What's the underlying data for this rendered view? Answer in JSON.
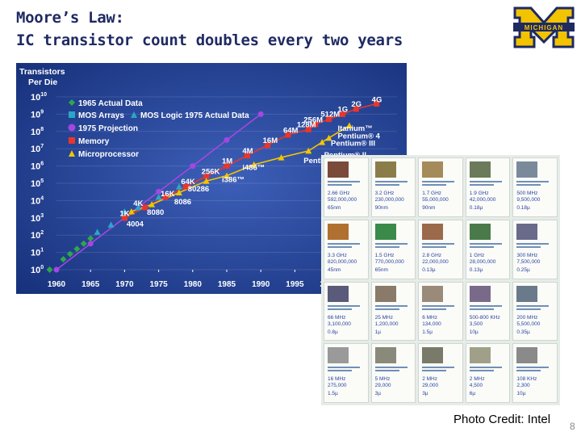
{
  "slide": {
    "title_line1": "Moore’s Law:",
    "title_line2": "IC transistor count doubles every two years",
    "logo_text": "MICHIGAN",
    "logo_letter": "M",
    "photo_credit": "Photo Credit: Intel",
    "page_number": "8"
  },
  "colors": {
    "chart_bg": "#1d3c8f",
    "maize": "#f2c400",
    "navy": "#1f2a63",
    "label_white": "#ffffff"
  },
  "chart_data": {
    "type": "scatter",
    "title": "Transistors Per Die",
    "title_line1": "Transistors",
    "title_line2": "Per Die",
    "y_scale": "log",
    "ylim": [
      1,
      10000000000
    ],
    "xlim": [
      1960,
      2010
    ],
    "x_ticks": [
      "1960",
      "1965",
      "1970",
      "1975",
      "1980",
      "1985",
      "1990",
      "1995",
      "2000"
    ],
    "y_ticks": [
      {
        "base": "10",
        "exp": "10",
        "value": 10000000000
      },
      {
        "base": "10",
        "exp": "9",
        "value": 1000000000
      },
      {
        "base": "10",
        "exp": "8",
        "value": 100000000
      },
      {
        "base": "10",
        "exp": "7",
        "value": 10000000
      },
      {
        "base": "10",
        "exp": "6",
        "value": 1000000
      },
      {
        "base": "10",
        "exp": "5",
        "value": 100000
      },
      {
        "base": "10",
        "exp": "4",
        "value": 10000
      },
      {
        "base": "10",
        "exp": "3",
        "value": 1000
      },
      {
        "base": "10",
        "exp": "2",
        "value": 100
      },
      {
        "base": "10",
        "exp": "1",
        "value": 10
      },
      {
        "base": "10",
        "exp": "0",
        "value": 1
      }
    ],
    "legend_position": "top-left",
    "series": [
      {
        "name": "1965 Actual Data",
        "marker": "diamond",
        "color": "#2ea84a",
        "line": false,
        "points": [
          [
            1959,
            1
          ],
          [
            1961,
            4
          ],
          [
            1962,
            8
          ],
          [
            1963,
            16
          ],
          [
            1964,
            32
          ],
          [
            1965,
            64
          ]
        ]
      },
      {
        "name": "MOS Arrays",
        "marker": "triangle",
        "color": "#2aa7c8",
        "line": false,
        "points": [
          [
            1970,
            1000
          ],
          [
            1972,
            4000
          ],
          [
            1975,
            16000
          ],
          [
            1978,
            64000
          ]
        ]
      },
      {
        "name": "MOS Logic 1975 Actual Data",
        "marker": "triangle",
        "color": "#2aa7c8",
        "line": false,
        "points": [
          [
            1966,
            150
          ],
          [
            1968,
            400
          ],
          [
            1970,
            2300
          ]
        ]
      },
      {
        "name": "1975 Projection",
        "marker": "circle",
        "color": "#a447e0",
        "line": true,
        "points": [
          [
            1960,
            1
          ],
          [
            1965,
            32
          ],
          [
            1970,
            1024
          ],
          [
            1975,
            32768
          ],
          [
            1980,
            1000000
          ],
          [
            1985,
            32000000
          ],
          [
            1990,
            1000000000
          ]
        ]
      },
      {
        "name": "Memory",
        "marker": "square",
        "color": "#e8362b",
        "line": true,
        "points": [
          [
            1970,
            1000
          ],
          [
            1973,
            4000
          ],
          [
            1976,
            16000
          ],
          [
            1979,
            64000
          ],
          [
            1982,
            256000
          ],
          [
            1985,
            1000000
          ],
          [
            1988,
            4000000
          ],
          [
            1991,
            16000000
          ],
          [
            1994,
            64000000
          ],
          [
            1997,
            128000000
          ],
          [
            1998,
            256000000
          ],
          [
            2000,
            512000000
          ],
          [
            2002,
            1000000000
          ],
          [
            2004,
            2000000000
          ],
          [
            2007,
            4000000000
          ]
        ]
      },
      {
        "name": "Microprocessor",
        "marker": "triangle",
        "color": "#f2c400",
        "line": true,
        "points": [
          [
            1971,
            2300
          ],
          [
            1974,
            6000
          ],
          [
            1978,
            29000
          ],
          [
            1982,
            134000
          ],
          [
            1985,
            275000
          ],
          [
            1989,
            1200000
          ],
          [
            1993,
            3100000
          ],
          [
            1997,
            7500000
          ],
          [
            1999,
            24000000
          ],
          [
            2000,
            42000000
          ],
          [
            2003,
            220000000
          ]
        ]
      }
    ],
    "annotations": [
      {
        "text": "4G",
        "x": 2007,
        "y": 5000000000
      },
      {
        "text": "2G",
        "x": 2004,
        "y": 2800000000
      },
      {
        "text": "1G",
        "x": 2002,
        "y": 1400000000
      },
      {
        "text": "512M",
        "x": 1999.5,
        "y": 700000000
      },
      {
        "text": "256M",
        "x": 1997,
        "y": 340000000
      },
      {
        "text": "128M",
        "x": 1996,
        "y": 180000000
      },
      {
        "text": "64M",
        "x": 1994,
        "y": 85000000
      },
      {
        "text": "16M",
        "x": 1991,
        "y": 22000000
      },
      {
        "text": "4M",
        "x": 1988,
        "y": 5500000
      },
      {
        "text": "1M",
        "x": 1985,
        "y": 1400000
      },
      {
        "text": "256K",
        "x": 1982,
        "y": 350000
      },
      {
        "text": "64K",
        "x": 1979,
        "y": 90000
      },
      {
        "text": "16K",
        "x": 1976,
        "y": 18000
      },
      {
        "text": "4K",
        "x": 1972,
        "y": 5000
      },
      {
        "text": "1K",
        "x": 1970,
        "y": 1300
      },
      {
        "text": "Itanium™",
        "x": 2002,
        "y": 110000000
      },
      {
        "text": "Pentium® 4",
        "x": 2002,
        "y": 40000000
      },
      {
        "text": "Pentium® III",
        "x": 2001,
        "y": 15000000
      },
      {
        "text": "Pentium® II",
        "x": 2000,
        "y": 3200000
      },
      {
        "text": "Pentium®",
        "x": 1997,
        "y": 1500000
      },
      {
        "text": "i486™",
        "x": 1988,
        "y": 600000
      },
      {
        "text": "i386™",
        "x": 1985,
        "y": 120000
      },
      {
        "text": "80286",
        "x": 1980,
        "y": 35000
      },
      {
        "text": "8086",
        "x": 1978,
        "y": 6000
      },
      {
        "text": "8080",
        "x": 1974,
        "y": 1500
      },
      {
        "text": "4004",
        "x": 1971,
        "y": 320
      }
    ]
  },
  "photo_grid": {
    "columns": 5,
    "rows": 4,
    "cards": [
      {
        "value": "2.66 GHz",
        "count": "592,000,000",
        "node": "65nm"
      },
      {
        "value": "3.2 GHz",
        "count": "230,000,000",
        "node": "90nm"
      },
      {
        "value": "1.7 GHz",
        "count": "55,000,000",
        "node": "90nm"
      },
      {
        "value": "1.9 GHz",
        "count": "42,000,000",
        "node": "0.18µ"
      },
      {
        "value": "500 MHz",
        "count": "9,500,000",
        "node": "0.18µ"
      },
      {
        "value": "3.3 GHz",
        "count": "820,000,000",
        "node": "45nm"
      },
      {
        "value": "1.5 GHz",
        "count": "770,000,000",
        "node": "65nm"
      },
      {
        "value": "2.8 GHz",
        "count": "22,000,000",
        "node": "0.13µ"
      },
      {
        "value": "1 GHz",
        "count": "28,000,000",
        "node": "0.13µ"
      },
      {
        "value": "300 MHz",
        "count": "7,500,000",
        "node": "0.25µ"
      },
      {
        "value": "66 MHz",
        "count": "3,100,000",
        "node": "0.8µ"
      },
      {
        "value": "25 MHz",
        "count": "1,200,000",
        "node": "1µ"
      },
      {
        "value": "6 MHz",
        "count": "134,000",
        "node": "1.5µ"
      },
      {
        "value": "500-800 KHz",
        "count": "3,500",
        "node": "10µ"
      },
      {
        "value": "200 MHz",
        "count": "5,500,000",
        "node": "0.35µ"
      },
      {
        "value": "16 MHz",
        "count": "275,000",
        "node": "1.5µ"
      },
      {
        "value": "5 MHz",
        "count": "29,000",
        "node": "3µ"
      },
      {
        "value": "2 MHz",
        "count": "29,000",
        "node": "3µ"
      },
      {
        "value": "2 MHz",
        "count": "4,500",
        "node": "6µ"
      },
      {
        "value": "108 KHz",
        "count": "2,300",
        "node": "10µ"
      }
    ]
  }
}
